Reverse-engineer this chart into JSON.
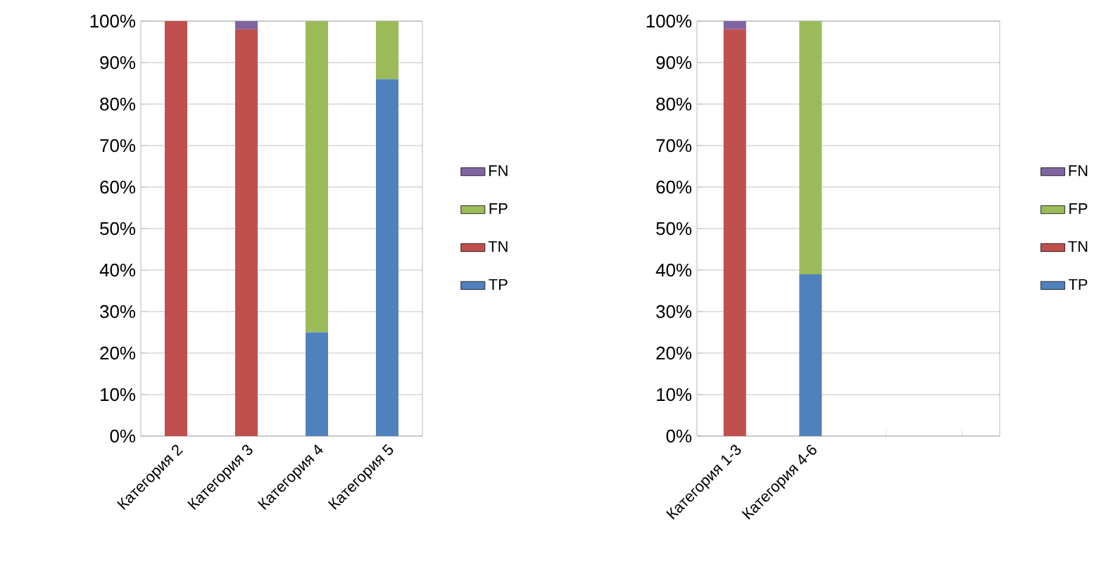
{
  "chart_data": [
    {
      "type": "bar",
      "stacked": true,
      "categories": [
        "Категория 2",
        "Категория 3",
        "Категория 4",
        "Категория 5"
      ],
      "series": [
        {
          "name": "TP",
          "color": "#4f81bd",
          "values": [
            0,
            0,
            25,
            86
          ]
        },
        {
          "name": "TN",
          "color": "#c0504d",
          "values": [
            100,
            98,
            0,
            0
          ]
        },
        {
          "name": "FP",
          "color": "#9bbb59",
          "values": [
            0,
            0,
            75,
            14
          ]
        },
        {
          "name": "FN",
          "color": "#8064a2",
          "values": [
            0,
            2,
            0,
            0
          ]
        }
      ],
      "ylim": [
        0,
        100
      ],
      "yticks": [
        {
          "value": 0,
          "label": "0%"
        },
        {
          "value": 10,
          "label": "10%"
        },
        {
          "value": 20,
          "label": "20%"
        },
        {
          "value": 30,
          "label": "30%"
        },
        {
          "value": 40,
          "label": "40%"
        },
        {
          "value": 50,
          "label": "50%"
        },
        {
          "value": 60,
          "label": "60%"
        },
        {
          "value": 70,
          "label": "70%"
        },
        {
          "value": 80,
          "label": "80%"
        },
        {
          "value": 90,
          "label": "90%"
        },
        {
          "value": 100,
          "label": "100%"
        }
      ],
      "grid": "y",
      "legend": "right"
    },
    {
      "type": "bar",
      "stacked": true,
      "categories": [
        "Категория 1-3",
        "Категория 4-6",
        null,
        null
      ],
      "series": [
        {
          "name": "TP",
          "color": "#4f81bd",
          "values": [
            0,
            39,
            null,
            null
          ]
        },
        {
          "name": "TN",
          "color": "#c0504d",
          "values": [
            98,
            0,
            null,
            null
          ]
        },
        {
          "name": "FP",
          "color": "#9bbb59",
          "values": [
            0,
            61,
            null,
            null
          ]
        },
        {
          "name": "FN",
          "color": "#8064a2",
          "values": [
            2,
            0,
            null,
            null
          ]
        }
      ],
      "ylim": [
        0,
        100
      ],
      "yticks": [
        {
          "value": 0,
          "label": "0%"
        },
        {
          "value": 10,
          "label": "10%"
        },
        {
          "value": 20,
          "label": "20%"
        },
        {
          "value": 30,
          "label": "30%"
        },
        {
          "value": 40,
          "label": "40%"
        },
        {
          "value": 50,
          "label": "50%"
        },
        {
          "value": 60,
          "label": "60%"
        },
        {
          "value": 70,
          "label": "70%"
        },
        {
          "value": 80,
          "label": "80%"
        },
        {
          "value": 90,
          "label": "90%"
        },
        {
          "value": 100,
          "label": "100%"
        }
      ],
      "grid": "y",
      "legend": "right"
    }
  ]
}
